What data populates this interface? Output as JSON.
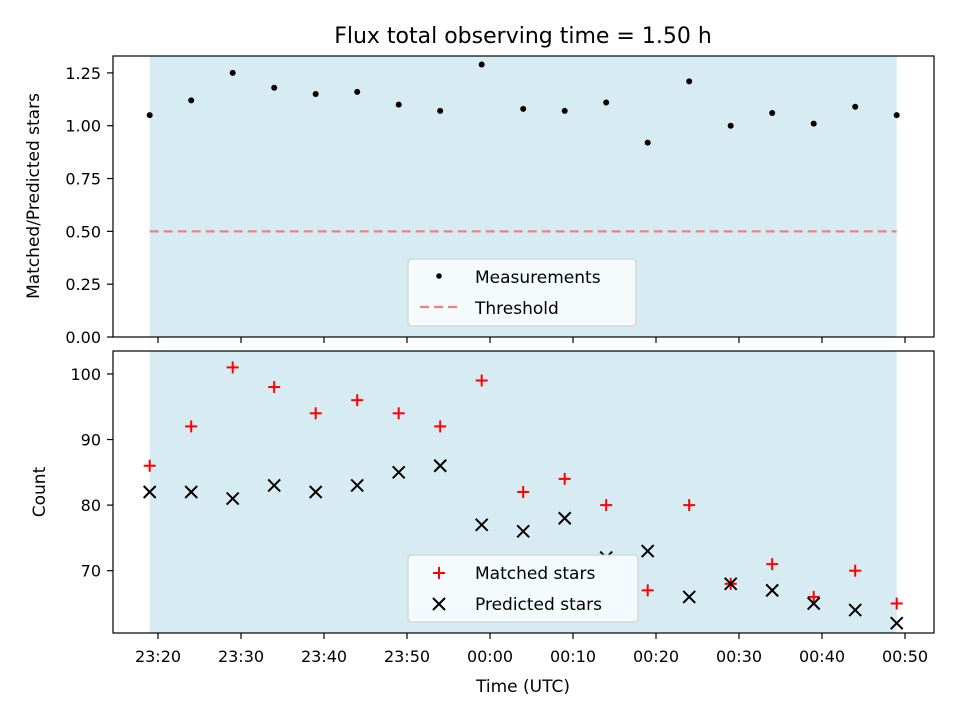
{
  "chart_data": [
    {
      "type": "scatter",
      "title": "Flux total observing time = 1.50 h",
      "ylabel": "Matched/Predicted stars",
      "ylim": [
        0,
        1.33
      ],
      "yticks": [
        0.0,
        0.25,
        0.5,
        0.75,
        1.0,
        1.25
      ],
      "ytick_labels": [
        "0.00",
        "0.25",
        "0.50",
        "0.75",
        "1.00",
        "1.25"
      ],
      "shaded_span": [
        "23:19",
        "00:49"
      ],
      "series": [
        {
          "name": "Measurements",
          "marker": "dot",
          "color": "#000000",
          "x": [
            "23:19",
            "23:24",
            "23:29",
            "23:34",
            "23:39",
            "23:44",
            "23:49",
            "23:54",
            "23:59",
            "00:04",
            "00:09",
            "00:14",
            "00:19",
            "00:24",
            "00:29",
            "00:34",
            "00:39",
            "00:44",
            "00:49"
          ],
          "y": [
            1.05,
            1.12,
            1.25,
            1.18,
            1.15,
            1.16,
            1.1,
            1.07,
            1.29,
            1.08,
            1.07,
            1.11,
            0.92,
            1.21,
            1.0,
            1.06,
            1.01,
            1.09,
            1.05
          ]
        }
      ],
      "threshold": {
        "name": "Threshold",
        "value": 0.5,
        "color": "#f08080"
      },
      "legend": "bottom-center"
    },
    {
      "type": "scatter",
      "ylabel": "Count",
      "xlabel": "Time (UTC)",
      "ylim": [
        60.5,
        103.5
      ],
      "yticks": [
        70,
        80,
        90,
        100
      ],
      "ytick_labels": [
        "70",
        "80",
        "90",
        "100"
      ],
      "xtick_labels": [
        "23:20",
        "23:30",
        "23:40",
        "23:50",
        "00:00",
        "00:10",
        "00:20",
        "00:30",
        "00:40",
        "00:50"
      ],
      "shaded_span": [
        "23:19",
        "00:49"
      ],
      "series": [
        {
          "name": "Matched stars",
          "marker": "plus",
          "color": "#ff0000",
          "x": [
            "23:19",
            "23:24",
            "23:29",
            "23:34",
            "23:39",
            "23:44",
            "23:49",
            "23:54",
            "23:59",
            "00:04",
            "00:09",
            "00:14",
            "00:19",
            "00:24",
            "00:29",
            "00:34",
            "00:39",
            "00:44",
            "00:49"
          ],
          "y": [
            86,
            92,
            101,
            98,
            94,
            96,
            94,
            92,
            99,
            82,
            84,
            80,
            67,
            80,
            68,
            71,
            66,
            70,
            65
          ]
        },
        {
          "name": "Predicted stars",
          "marker": "x",
          "color": "#000000",
          "x": [
            "23:19",
            "23:24",
            "23:29",
            "23:34",
            "23:39",
            "23:44",
            "23:49",
            "23:54",
            "23:59",
            "00:04",
            "00:09",
            "00:14",
            "00:19",
            "00:24",
            "00:29",
            "00:34",
            "00:39",
            "00:44",
            "00:49"
          ],
          "y": [
            82,
            82,
            81,
            83,
            82,
            83,
            85,
            86,
            77,
            76,
            78,
            72,
            73,
            66,
            68,
            67,
            65,
            64,
            62
          ]
        }
      ],
      "legend": "bottom-center"
    }
  ],
  "colors": {
    "shade": "#add8e6",
    "legend_bg": "#f5fafd"
  }
}
